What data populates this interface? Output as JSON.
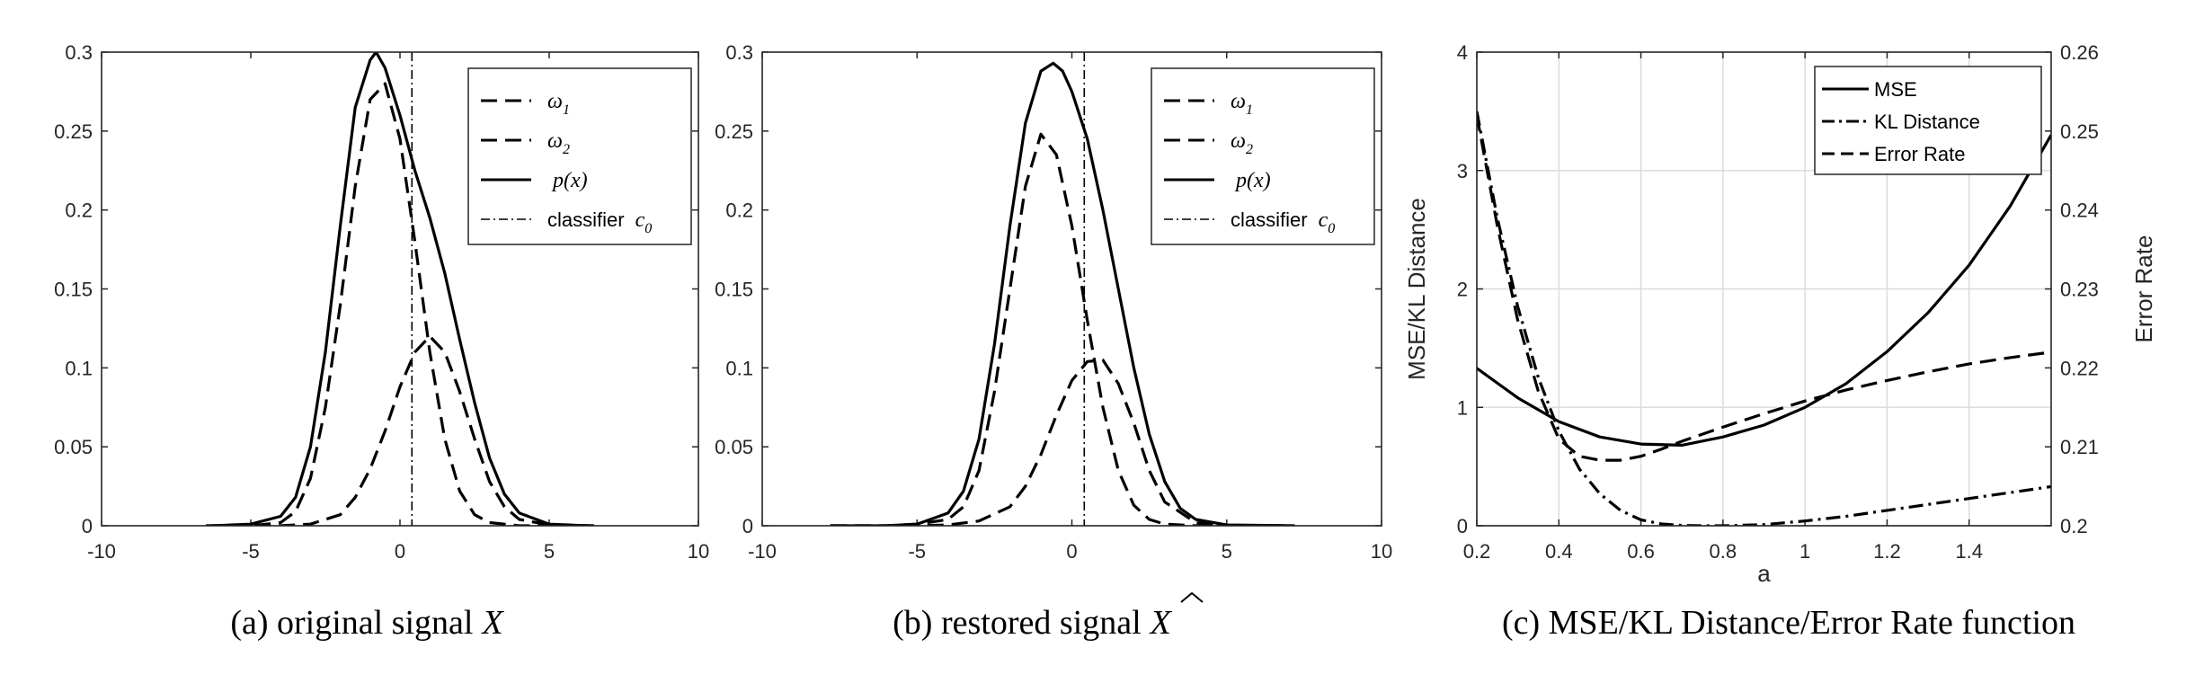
{
  "chart_data": [
    {
      "type": "line",
      "caption_prefix": "(a) original signal",
      "caption_var": "X",
      "xlim": [
        -10,
        10
      ],
      "ylim": [
        0,
        0.3
      ],
      "xticks": [
        "-10",
        "-5",
        "0",
        "5",
        "10"
      ],
      "yticks": [
        "0",
        "0.05",
        "0.1",
        "0.15",
        "0.2",
        "0.25",
        "0.3"
      ],
      "grid": false,
      "legend_position": "top-right",
      "legend": [
        {
          "symbol": "ω",
          "sub": "1",
          "style": "dashed"
        },
        {
          "symbol": "ω",
          "sub": "2",
          "style": "dashed"
        },
        {
          "text": "p(x)",
          "style": "solid"
        },
        {
          "text": "classifier",
          "symbol": "c",
          "sub": "0",
          "style": "dashdot"
        }
      ],
      "classifier_x": 0.4,
      "series": [
        {
          "style": "dashed",
          "x": [
            -6.5,
            -5,
            -4,
            -3.5,
            -3,
            -2.5,
            -2,
            -1.5,
            -1,
            -0.5,
            0,
            0.5,
            1,
            1.5,
            2,
            2.5,
            3,
            4,
            5,
            6.5
          ],
          "y": [
            0,
            0,
            0.002,
            0.009,
            0.03,
            0.075,
            0.14,
            0.215,
            0.27,
            0.28,
            0.245,
            0.18,
            0.11,
            0.055,
            0.022,
            0.007,
            0.002,
            0,
            0,
            0
          ]
        },
        {
          "style": "dashed",
          "x": [
            -6.5,
            -4,
            -3,
            -2,
            -1.5,
            -1,
            -0.5,
            0,
            0.5,
            1,
            1.5,
            2,
            2.5,
            3,
            3.5,
            4,
            5,
            6.5
          ],
          "y": [
            0,
            0,
            0.001,
            0.007,
            0.018,
            0.036,
            0.06,
            0.088,
            0.11,
            0.12,
            0.11,
            0.085,
            0.055,
            0.028,
            0.012,
            0.004,
            0.0005,
            0
          ]
        },
        {
          "style": "solid",
          "x": [
            -6.3,
            -5,
            -4,
            -3.5,
            -3,
            -2.5,
            -2,
            -1.5,
            -1,
            -0.8,
            -0.5,
            0,
            0.5,
            1,
            1.5,
            2,
            2.5,
            3,
            3.5,
            4,
            5,
            6.3
          ],
          "y": [
            0,
            0.001,
            0.006,
            0.018,
            0.05,
            0.11,
            0.19,
            0.265,
            0.295,
            0.3,
            0.29,
            0.26,
            0.225,
            0.195,
            0.16,
            0.118,
            0.078,
            0.043,
            0.02,
            0.008,
            0.001,
            0
          ]
        }
      ]
    },
    {
      "type": "line",
      "caption_prefix": "(b) restored signal",
      "caption_var": "X",
      "caption_accent": "^",
      "xlim": [
        -10,
        10
      ],
      "ylim": [
        0,
        0.3
      ],
      "xticks": [
        "-10",
        "-5",
        "0",
        "5",
        "10"
      ],
      "yticks": [
        "0",
        "0.05",
        "0.1",
        "0.15",
        "0.2",
        "0.25",
        "0.3"
      ],
      "grid": false,
      "legend_position": "top-right",
      "legend": [
        {
          "symbol": "ω",
          "sub": "1",
          "style": "dashed"
        },
        {
          "symbol": "ω",
          "sub": "2",
          "style": "dashed"
        },
        {
          "text": "p(x)",
          "style": "solid"
        },
        {
          "text": "classifier",
          "symbol": "c",
          "sub": "0",
          "style": "dashdot"
        }
      ],
      "classifier_x": 0.4,
      "series": [
        {
          "style": "dashed",
          "x": [
            -7.8,
            -6,
            -5,
            -4,
            -3.5,
            -3,
            -2.5,
            -2,
            -1.5,
            -1,
            -0.5,
            0,
            0.5,
            1,
            1.5,
            2,
            2.5,
            3,
            4,
            5,
            7
          ],
          "y": [
            0,
            0,
            0.001,
            0.004,
            0.012,
            0.035,
            0.085,
            0.15,
            0.215,
            0.248,
            0.235,
            0.19,
            0.13,
            0.075,
            0.035,
            0.013,
            0.004,
            0.001,
            0,
            0,
            0
          ]
        },
        {
          "style": "dashed",
          "x": [
            -7.8,
            -5,
            -4,
            -3,
            -2,
            -1.5,
            -1,
            -0.5,
            0,
            0.5,
            1,
            1.5,
            2,
            2.5,
            3,
            4,
            5,
            7
          ],
          "y": [
            0,
            0,
            0.0005,
            0.003,
            0.012,
            0.025,
            0.045,
            0.07,
            0.092,
            0.104,
            0.105,
            0.09,
            0.065,
            0.035,
            0.015,
            0.002,
            0,
            0
          ]
        },
        {
          "style": "solid",
          "x": [
            -7.8,
            -6,
            -5,
            -4,
            -3.5,
            -3,
            -2.5,
            -2,
            -1.5,
            -1,
            -0.6,
            -0.3,
            0,
            0.5,
            1,
            1.5,
            2,
            2.5,
            3,
            3.5,
            4,
            5,
            7.2
          ],
          "y": [
            0,
            0,
            0.001,
            0.008,
            0.022,
            0.055,
            0.115,
            0.19,
            0.255,
            0.288,
            0.293,
            0.288,
            0.275,
            0.245,
            0.2,
            0.15,
            0.1,
            0.058,
            0.028,
            0.011,
            0.004,
            0.0005,
            0
          ]
        }
      ]
    },
    {
      "type": "line",
      "caption_prefix": "(c) MSE/KL Distance/Error Rate function",
      "xlabel": "a",
      "ylabel": "MSE/KL Distance",
      "y2label": "Error Rate",
      "xlim": [
        0.2,
        1.6
      ],
      "ylim": [
        0,
        4
      ],
      "y2lim": [
        0.2,
        0.26
      ],
      "xticks": [
        "0.2",
        "0.4",
        "0.6",
        "0.8",
        "1",
        "1.2",
        "1.4"
      ],
      "yticks": [
        "0",
        "1",
        "2",
        "3",
        "4"
      ],
      "y2ticks": [
        "0.2",
        "0.21",
        "0.22",
        "0.23",
        "0.24",
        "0.25",
        "0.26"
      ],
      "grid": true,
      "legend_position": "top-right",
      "legend": [
        {
          "text": "MSE",
          "style": "solid"
        },
        {
          "text": "KL Distance",
          "style": "dashdot"
        },
        {
          "text": "Error Rate",
          "style": "dashed"
        }
      ],
      "series": [
        {
          "name": "MSE",
          "axis": "left",
          "style": "solid",
          "x": [
            0.2,
            0.3,
            0.4,
            0.5,
            0.6,
            0.7,
            0.8,
            0.9,
            1.0,
            1.1,
            1.2,
            1.3,
            1.4,
            1.5,
            1.6
          ],
          "y": [
            1.33,
            1.08,
            0.88,
            0.75,
            0.69,
            0.68,
            0.75,
            0.85,
            1.0,
            1.2,
            1.47,
            1.8,
            2.2,
            2.7,
            3.3
          ]
        },
        {
          "name": "KL Distance",
          "axis": "left",
          "style": "dashdot",
          "x": [
            0.2,
            0.25,
            0.3,
            0.35,
            0.4,
            0.45,
            0.5,
            0.55,
            0.6,
            0.65,
            0.7,
            0.75,
            0.8,
            0.9,
            1.0,
            1.1,
            1.2,
            1.3,
            1.4,
            1.5,
            1.6
          ],
          "y": [
            3.5,
            2.6,
            1.85,
            1.25,
            0.8,
            0.48,
            0.27,
            0.13,
            0.05,
            0.015,
            0.003,
            0.0,
            0.0,
            0.01,
            0.04,
            0.08,
            0.13,
            0.18,
            0.23,
            0.28,
            0.33
          ]
        },
        {
          "name": "Error Rate",
          "axis": "right",
          "style": "dashed",
          "x": [
            0.2,
            0.25,
            0.3,
            0.35,
            0.4,
            0.45,
            0.5,
            0.55,
            0.6,
            0.65,
            0.7,
            0.8,
            0.9,
            1.0,
            1.1,
            1.2,
            1.3,
            1.4,
            1.5,
            1.6
          ],
          "y": [
            0.252,
            0.238,
            0.226,
            0.217,
            0.211,
            0.2088,
            0.2083,
            0.2083,
            0.2088,
            0.2097,
            0.2107,
            0.2125,
            0.2142,
            0.2158,
            0.2172,
            0.2184,
            0.2195,
            0.2205,
            0.2213,
            0.222
          ]
        }
      ]
    }
  ]
}
